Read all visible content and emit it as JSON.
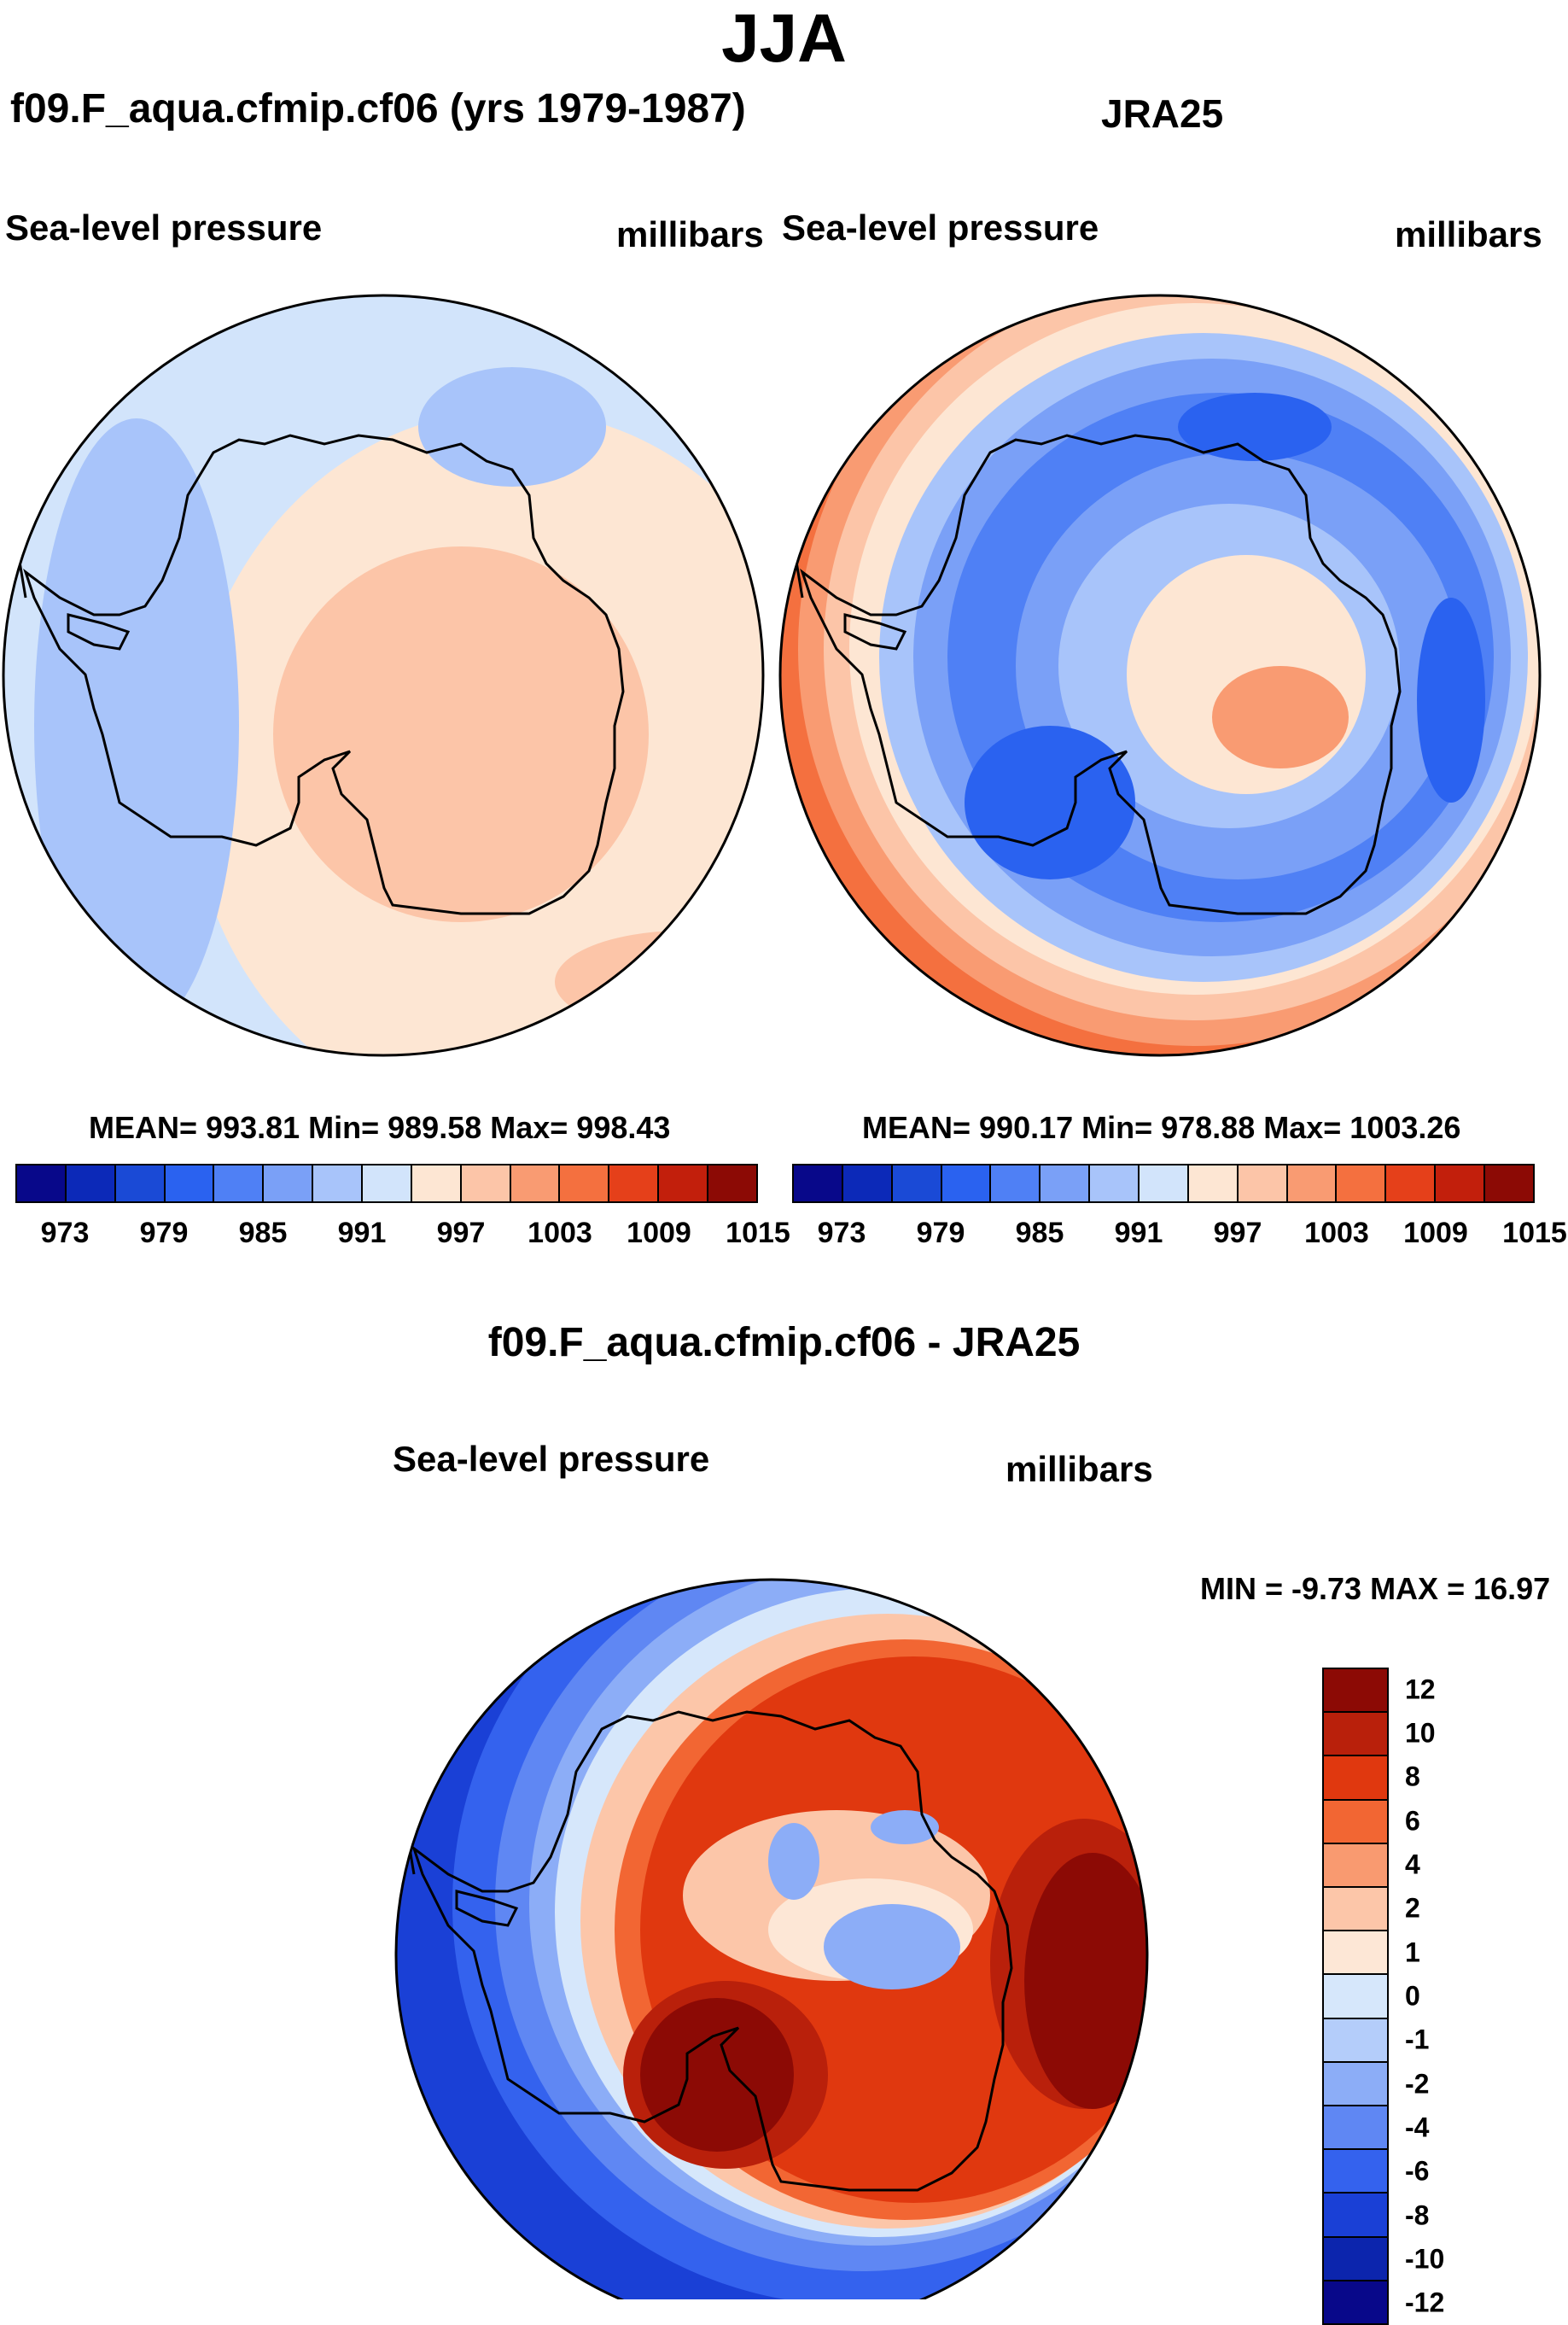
{
  "season": "JJA",
  "left_title": "f09.F_aqua.cfmip.cf06 (yrs 1979-1987)",
  "right_title": "JRA25",
  "variable": "Sea-level pressure",
  "units": "millibars",
  "left_stats": "MEAN= 993.81  Min= 989.58  Max= 998.43",
  "right_stats": "MEAN= 990.17  Min= 978.88  Max= 1003.26",
  "diff_title": "f09.F_aqua.cfmip.cf06 - JRA25",
  "diff_stats": "MIN =  -9.73 MAX =  16.97",
  "colors": {
    "top_levels": [
      "#08088a",
      "#0c29b8",
      "#1a4ad6",
      "#2a62f0",
      "#4f80f5",
      "#7aa0f7",
      "#a8c4fa",
      "#d2e4fb",
      "#fde6d3",
      "#fcc5a8",
      "#f99b72",
      "#f4703f",
      "#e5401a",
      "#c21f0c",
      "#8c0a05"
    ],
    "diff_levels": [
      "#8c0a05",
      "#b9200b",
      "#e0380f",
      "#f26633",
      "#f99a70",
      "#fcc6a9",
      "#fde7d6",
      "#d6e7fb",
      "#b4cdfa",
      "#8cadf7",
      "#5f87f3",
      "#3462ee",
      "#1a40d6",
      "#0c25ad",
      "#08088a"
    ]
  },
  "top_colorbar_ticks": [
    "973",
    "979",
    "985",
    "991",
    "997",
    "1003",
    "1009",
    "1015"
  ],
  "diff_colorbar_ticks": [
    "12",
    "10",
    "8",
    "6",
    "4",
    "2",
    "1",
    "0",
    "-1",
    "-2",
    "-4",
    "-6",
    "-8",
    "-10",
    "-12"
  ]
}
